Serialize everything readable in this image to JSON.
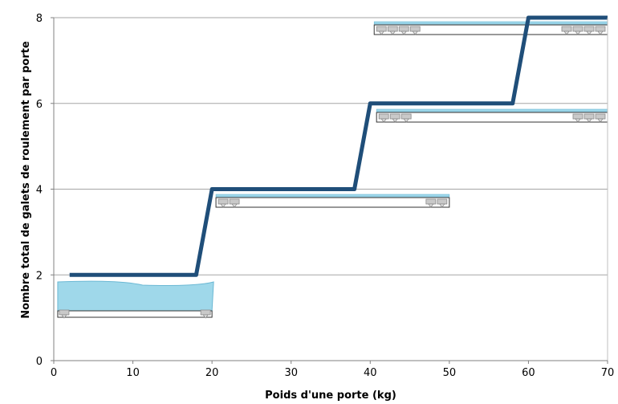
{
  "chart_data": {
    "type": "line",
    "title": "",
    "xlabel": "Poids d'une porte (kg)",
    "ylabel": "Nombre total de galets de roulement par porte",
    "xlim": [
      0,
      70
    ],
    "ylim": [
      0,
      8
    ],
    "x_ticks": [
      0,
      10,
      20,
      30,
      40,
      50,
      60,
      70
    ],
    "y_ticks": [
      0,
      2,
      4,
      6,
      8
    ],
    "grid": "horizontal",
    "series": [
      {
        "color": "#1f4e79",
        "x": [
          2,
          18,
          20,
          38,
          40,
          58,
          60,
          70
        ],
        "y": [
          2,
          2,
          4,
          4,
          6,
          6,
          8,
          8
        ]
      }
    ],
    "illustrations": [
      {
        "kind": "door-with-glass",
        "x_range": [
          0.5,
          20
        ],
        "rollers_left": 1,
        "rollers_right": 1
      },
      {
        "kind": "door-rail",
        "x_range": [
          20.5,
          50
        ],
        "rollers_left": 2,
        "rollers_right": 2
      },
      {
        "kind": "door-rail",
        "x_range": [
          40.8,
          70
        ],
        "rollers_left": 3,
        "rollers_right": 3
      },
      {
        "kind": "door-rail",
        "x_range": [
          40.5,
          70
        ],
        "rollers_left": 4,
        "rollers_right": 4
      }
    ]
  }
}
